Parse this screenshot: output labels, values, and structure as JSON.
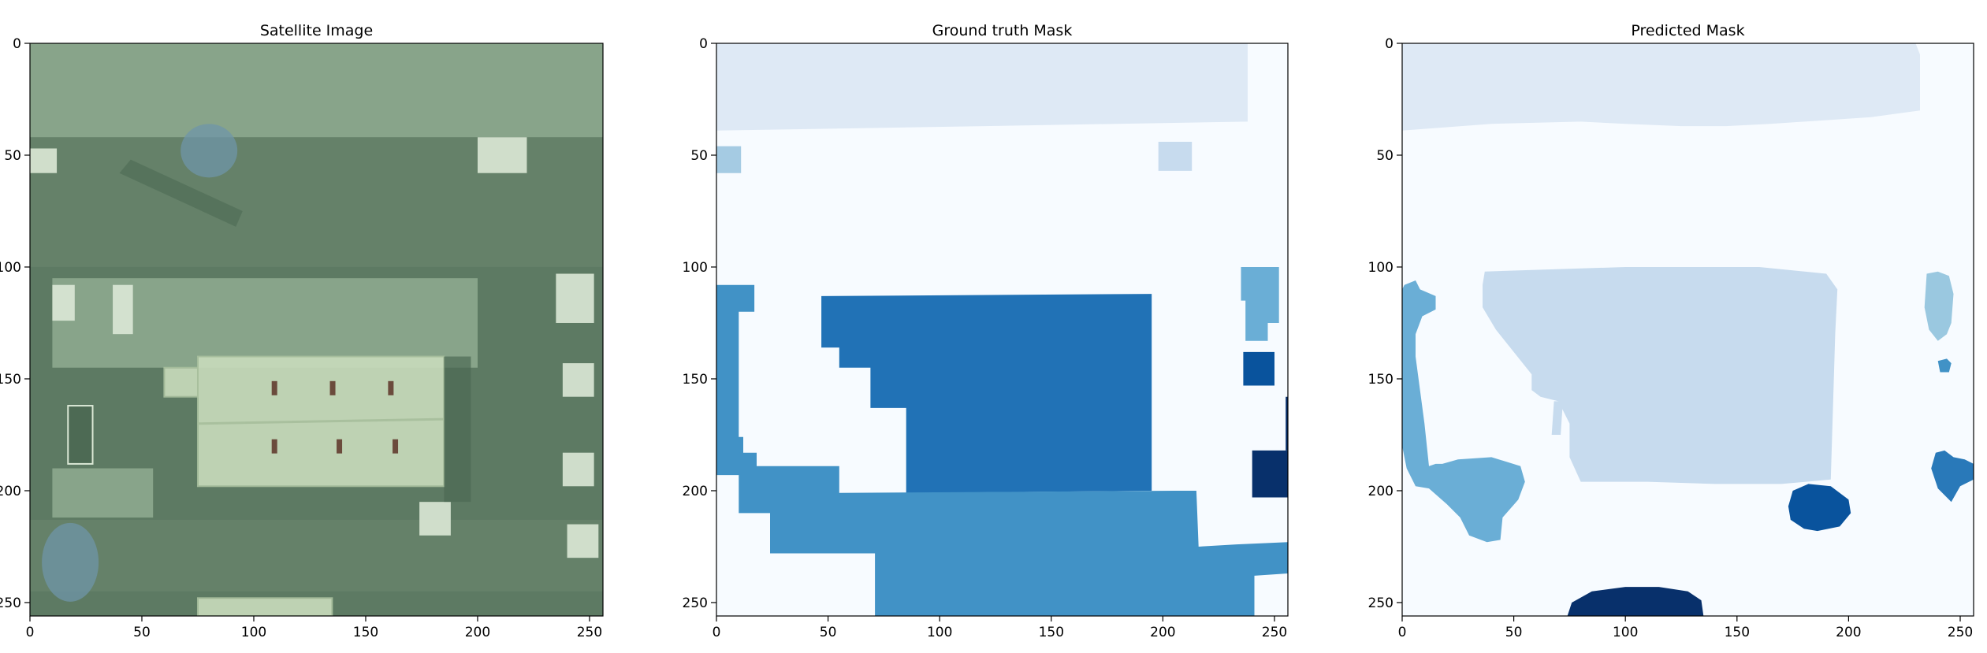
{
  "chart_data": [
    {
      "type": "image",
      "title": "Satellite Image",
      "xlim": [
        0,
        256
      ],
      "ylim": [
        256,
        0
      ],
      "xticks": [
        0,
        50,
        100,
        150,
        200,
        250
      ],
      "yticks": [
        0,
        50,
        100,
        150,
        200,
        250
      ],
      "colors": {
        "base": "#5d7a63",
        "roof_light": "#8da98e",
        "building": "#c9dcbc",
        "building_edge": "#a9c09e",
        "road": "#6b866f",
        "shadow": "#4d6a54",
        "tank": "#dbe8d6",
        "blue_tint": "#6f95a8",
        "window": "#6b4b3c"
      },
      "shapes": [
        {
          "kind": "roof",
          "x": [
            0,
            256
          ],
          "y": [
            0,
            42
          ]
        },
        {
          "kind": "road",
          "x": [
            0,
            256
          ],
          "y": [
            42,
            100
          ]
        },
        {
          "kind": "roof",
          "x": [
            10,
            200
          ],
          "y": [
            105,
            145
          ]
        },
        {
          "kind": "building",
          "x": [
            75,
            185
          ],
          "y": [
            140,
            198
          ]
        },
        {
          "kind": "building",
          "x": [
            60,
            75
          ],
          "y": [
            145,
            158
          ]
        },
        {
          "kind": "roof",
          "x": [
            10,
            55
          ],
          "y": [
            190,
            212
          ]
        },
        {
          "kind": "road",
          "x": [
            0,
            256
          ],
          "y": [
            213,
            245
          ]
        },
        {
          "kind": "building",
          "x": [
            75,
            135
          ],
          "y": [
            248,
            256
          ]
        },
        {
          "kind": "tank",
          "x": [
            10,
            20
          ],
          "y": [
            108,
            124
          ]
        },
        {
          "kind": "tank",
          "x": [
            37,
            46
          ],
          "y": [
            108,
            130
          ]
        },
        {
          "kind": "tank",
          "x": [
            235,
            252
          ],
          "y": [
            103,
            125
          ]
        },
        {
          "kind": "tank",
          "x": [
            238,
            252
          ],
          "y": [
            143,
            158
          ]
        },
        {
          "kind": "tank",
          "x": [
            238,
            252
          ],
          "y": [
            183,
            198
          ]
        },
        {
          "kind": "tank",
          "x": [
            0,
            12
          ],
          "y": [
            47,
            58
          ]
        },
        {
          "kind": "tank",
          "x": [
            200,
            222
          ],
          "y": [
            42,
            58
          ]
        },
        {
          "kind": "tank",
          "x": [
            174,
            188
          ],
          "y": [
            205,
            220
          ]
        },
        {
          "kind": "tank",
          "x": [
            240,
            254
          ],
          "y": [
            215,
            230
          ]
        }
      ]
    },
    {
      "type": "heatmap",
      "title": "Ground truth Mask",
      "xlim": [
        0,
        256
      ],
      "ylim": [
        256,
        0
      ],
      "xticks": [
        0,
        50,
        100,
        150,
        200,
        250
      ],
      "yticks": [
        0,
        50,
        100,
        150,
        200,
        250
      ],
      "colormap": "Blues",
      "background": "#f7fbff",
      "regions": [
        {
          "color": "#dee9f5",
          "points": [
            [
              0,
              0
            ],
            [
              238,
              0
            ],
            [
              238,
              35
            ],
            [
              120,
              37
            ],
            [
              0,
              39
            ]
          ]
        },
        {
          "color": "#a5cbe3",
          "points": [
            [
              0,
              46
            ],
            [
              11,
              46
            ],
            [
              11,
              58
            ],
            [
              0,
              58
            ]
          ]
        },
        {
          "color": "#c7dbee",
          "points": [
            [
              198,
              44
            ],
            [
              213,
              44
            ],
            [
              213,
              57
            ],
            [
              198,
              57
            ]
          ]
        },
        {
          "color": "#2172b6",
          "points": [
            [
              47,
              113
            ],
            [
              195,
              112
            ],
            [
              195,
              200
            ],
            [
              85,
              201
            ],
            [
              85,
              163
            ],
            [
              69,
              163
            ],
            [
              69,
              145
            ],
            [
              55,
              145
            ],
            [
              55,
              136
            ],
            [
              47,
              136
            ]
          ]
        },
        {
          "color": "#4192c6",
          "points": [
            [
              0,
              108
            ],
            [
              17,
              108
            ],
            [
              17,
              120
            ],
            [
              10,
              120
            ],
            [
              10,
              176
            ],
            [
              12,
              176
            ],
            [
              12,
              193
            ],
            [
              0,
              193
            ]
          ]
        },
        {
          "color": "#4192c6",
          "points": [
            [
              10,
              183
            ],
            [
              18,
              183
            ],
            [
              18,
              189
            ],
            [
              55,
              189
            ],
            [
              55,
              201
            ],
            [
              205,
              200
            ],
            [
              215,
              200
            ],
            [
              216,
              225
            ],
            [
              233,
              224
            ],
            [
              256,
              223
            ],
            [
              256,
              237
            ],
            [
              241,
              238
            ],
            [
              241,
              256
            ],
            [
              71,
              256
            ],
            [
              71,
              228
            ],
            [
              24,
              228
            ],
            [
              24,
              210
            ],
            [
              10,
              210
            ]
          ]
        },
        {
          "color": "#6aaed6",
          "points": [
            [
              235,
              100
            ],
            [
              252,
              100
            ],
            [
              252,
              125
            ],
            [
              247,
              125
            ],
            [
              247,
              133
            ],
            [
              237,
              133
            ],
            [
              237,
              115
            ],
            [
              235,
              115
            ]
          ]
        },
        {
          "color": "#09539d",
          "points": [
            [
              236,
              138
            ],
            [
              250,
              138
            ],
            [
              250,
              153
            ],
            [
              236,
              153
            ]
          ]
        },
        {
          "color": "#08306b",
          "points": [
            [
              240,
              182
            ],
            [
              256,
              182
            ],
            [
              256,
              203
            ],
            [
              240,
              203
            ]
          ]
        },
        {
          "color": "#08306b",
          "points": [
            [
              255,
              158
            ],
            [
              256,
              158
            ],
            [
              256,
              182
            ],
            [
              255,
              182
            ]
          ]
        }
      ]
    },
    {
      "type": "heatmap",
      "title": "Predicted Mask",
      "xlim": [
        0,
        256
      ],
      "ylim": [
        256,
        0
      ],
      "xticks": [
        0,
        50,
        100,
        150,
        200,
        250
      ],
      "yticks": [
        0,
        50,
        100,
        150,
        200,
        250
      ],
      "colormap": "Blues",
      "background": "#f7fbff",
      "regions": [
        {
          "color": "#dee9f5",
          "points": [
            [
              0,
              0
            ],
            [
              230,
              0
            ],
            [
              232,
              5
            ],
            [
              232,
              30
            ],
            [
              210,
              33
            ],
            [
              195,
              34
            ],
            [
              165,
              36
            ],
            [
              145,
              37
            ],
            [
              125,
              37
            ],
            [
              100,
              36
            ],
            [
              80,
              35
            ],
            [
              40,
              36
            ],
            [
              0,
              39
            ]
          ]
        },
        {
          "color": "#c7dbee",
          "points": [
            [
              37,
              102
            ],
            [
              100,
              100
            ],
            [
              160,
              100
            ],
            [
              190,
              103
            ],
            [
              195,
              110
            ],
            [
              194,
              130
            ],
            [
              192,
              195
            ],
            [
              170,
              197
            ],
            [
              140,
              197
            ],
            [
              110,
              196
            ],
            [
              80,
              196
            ],
            [
              75,
              185
            ],
            [
              75,
              170
            ],
            [
              70,
              160
            ],
            [
              62,
              158
            ],
            [
              58,
              155
            ],
            [
              58,
              148
            ],
            [
              50,
              138
            ],
            [
              42,
              128
            ],
            [
              36,
              118
            ],
            [
              36,
              108
            ]
          ]
        },
        {
          "color": "#c7dbee",
          "points": [
            [
              68,
              160
            ],
            [
              72,
              160
            ],
            [
              71,
              175
            ],
            [
              67,
              175
            ]
          ]
        },
        {
          "color": "#6aaed6",
          "points": [
            [
              1,
              108
            ],
            [
              6,
              106
            ],
            [
              8,
              110
            ],
            [
              15,
              113
            ],
            [
              15,
              119
            ],
            [
              9,
              122
            ],
            [
              6,
              130
            ],
            [
              6,
              140
            ],
            [
              10,
              170
            ],
            [
              12,
              189
            ],
            [
              15,
              188
            ],
            [
              18,
              188
            ],
            [
              25,
              186
            ],
            [
              40,
              185
            ],
            [
              53,
              189
            ],
            [
              55,
              196
            ],
            [
              52,
              204
            ],
            [
              45,
              212
            ],
            [
              44,
              222
            ],
            [
              38,
              223
            ],
            [
              30,
              220
            ],
            [
              26,
              212
            ],
            [
              20,
              206
            ],
            [
              12,
              199
            ],
            [
              6,
              198
            ],
            [
              2,
              190
            ],
            [
              0,
              180
            ],
            [
              0,
              110
            ]
          ]
        },
        {
          "color": "#9ac8e0",
          "points": [
            [
              235,
              103
            ],
            [
              240,
              102
            ],
            [
              245,
              104
            ],
            [
              247,
              112
            ],
            [
              246,
              125
            ],
            [
              244,
              130
            ],
            [
              240,
              133
            ],
            [
              236,
              128
            ],
            [
              234,
              118
            ]
          ]
        },
        {
          "color": "#4192c6",
          "points": [
            [
              240,
              142
            ],
            [
              244,
              141
            ],
            [
              246,
              143
            ],
            [
              245,
              147
            ],
            [
              241,
              147
            ]
          ]
        },
        {
          "color": "#2979b9",
          "points": [
            [
              239,
              183
            ],
            [
              243,
              182
            ],
            [
              247,
              185
            ],
            [
              252,
              186
            ],
            [
              256,
              188
            ],
            [
              256,
              195
            ],
            [
              250,
              198
            ],
            [
              246,
              205
            ],
            [
              240,
              199
            ],
            [
              237,
              190
            ]
          ]
        },
        {
          "color": "#09539d",
          "points": [
            [
              175,
              200
            ],
            [
              182,
              197
            ],
            [
              192,
              198
            ],
            [
              200,
              204
            ],
            [
              201,
              210
            ],
            [
              196,
              216
            ],
            [
              186,
              218
            ],
            [
              180,
              217
            ],
            [
              174,
              213
            ],
            [
              173,
              207
            ]
          ]
        },
        {
          "color": "#08306b",
          "points": [
            [
              74,
              256
            ],
            [
              76,
              250
            ],
            [
              85,
              245
            ],
            [
              100,
              243
            ],
            [
              115,
              243
            ],
            [
              128,
              245
            ],
            [
              134,
              249
            ],
            [
              135,
              256
            ]
          ]
        }
      ]
    }
  ]
}
